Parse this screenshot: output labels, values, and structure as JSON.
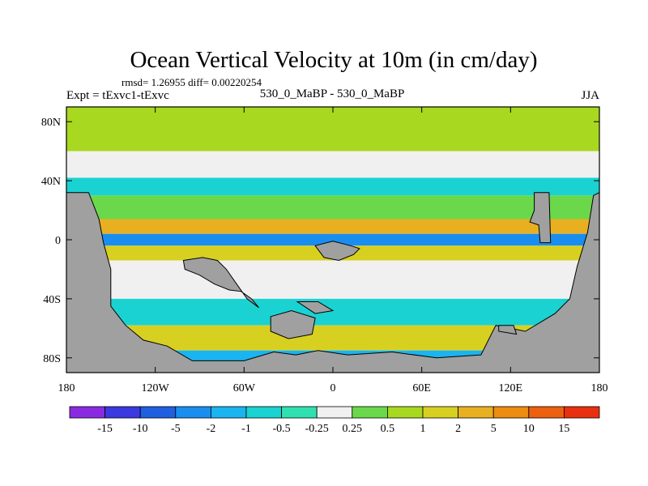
{
  "chart_data": {
    "type": "heatmap",
    "title": "Ocean Vertical Velocity at 10m (in cm/day)",
    "stats_text": "rmsd= 1.26955 diff= 0.00220254",
    "left_label": "Expt = tExvc1-tExvc",
    "center_label": "530_0_MaBP - 530_0_MaBP",
    "right_label": "JJA",
    "x_range": [
      -180,
      180
    ],
    "y_range": [
      -90,
      90
    ],
    "x_ticks": [
      {
        "value": -180,
        "label": "180"
      },
      {
        "value": -120,
        "label": "120W"
      },
      {
        "value": -60,
        "label": "60W"
      },
      {
        "value": 0,
        "label": "0"
      },
      {
        "value": 60,
        "label": "60E"
      },
      {
        "value": 120,
        "label": "120E"
      },
      {
        "value": 180,
        "label": "180"
      }
    ],
    "y_ticks": [
      {
        "value": 80,
        "label": "80N"
      },
      {
        "value": 40,
        "label": "40N"
      },
      {
        "value": 0,
        "label": "0"
      },
      {
        "value": -40,
        "label": "40S"
      },
      {
        "value": -80,
        "label": "80S"
      }
    ],
    "colorbar": {
      "colors": [
        "#8a2be2",
        "#3a3ae0",
        "#1f5fe0",
        "#1a8ef0",
        "#1ab4f0",
        "#1ad2d2",
        "#30e0b0",
        "#f0f0f0",
        "#6ad84a",
        "#a8d820",
        "#d8d020",
        "#e8b020",
        "#ec8c10",
        "#ec6010",
        "#e83010"
      ],
      "labels": [
        "-15",
        "-10",
        "-5",
        "-2",
        "-1",
        "-0.5",
        "-0.25",
        "0.25",
        "0.5",
        "1",
        "2",
        "5",
        "10",
        "15"
      ]
    },
    "land_color": "#a0a0a0",
    "bands": [
      {
        "lat_min": 60,
        "lat_max": 90,
        "value": 0.8
      },
      {
        "lat_min": 42,
        "lat_max": 60,
        "value": -0.2
      },
      {
        "lat_min": 30,
        "lat_max": 42,
        "value": -0.7
      },
      {
        "lat_min": 14,
        "lat_max": 30,
        "value": 0.4
      },
      {
        "lat_min": 4,
        "lat_max": 14,
        "value": 2.5
      },
      {
        "lat_min": -4,
        "lat_max": 4,
        "value": -2.5
      },
      {
        "lat_min": -14,
        "lat_max": -4,
        "value": 1.5
      },
      {
        "lat_min": -40,
        "lat_max": -14,
        "value": 0.1
      },
      {
        "lat_min": -58,
        "lat_max": -40,
        "value": -0.6
      },
      {
        "lat_min": -75,
        "lat_max": -58,
        "value": 1.2
      },
      {
        "lat_min": -90,
        "lat_max": -75,
        "value": -1.5
      }
    ],
    "land": [
      [
        [
          -180,
          32
        ],
        [
          -165,
          32
        ],
        [
          -158,
          14
        ],
        [
          -155,
          -2
        ],
        [
          -150,
          -20
        ],
        [
          -150,
          -45
        ],
        [
          -140,
          -58
        ],
        [
          -128,
          -68
        ],
        [
          -112,
          -72
        ],
        [
          -95,
          -82
        ],
        [
          -60,
          -82
        ],
        [
          -40,
          -76
        ],
        [
          -25,
          -78
        ],
        [
          -10,
          -75
        ],
        [
          10,
          -78
        ],
        [
          40,
          -76
        ],
        [
          70,
          -80
        ],
        [
          100,
          -78
        ],
        [
          110,
          -58
        ],
        [
          130,
          -62
        ],
        [
          150,
          -50
        ],
        [
          160,
          -40
        ],
        [
          165,
          -18
        ],
        [
          172,
          5
        ],
        [
          176,
          30
        ],
        [
          180,
          32
        ],
        [
          180,
          -90
        ],
        [
          -180,
          -90
        ]
      ],
      [
        [
          -101,
          -14
        ],
        [
          -88,
          -12
        ],
        [
          -78,
          -14
        ],
        [
          -72,
          -20
        ],
        [
          -65,
          -30
        ],
        [
          -58,
          -40
        ],
        [
          -50,
          -46
        ],
        [
          -55,
          -40
        ],
        [
          -62,
          -35
        ],
        [
          -70,
          -34
        ],
        [
          -80,
          -30
        ],
        [
          -90,
          -24
        ],
        [
          -100,
          -20
        ]
      ],
      [
        [
          -12,
          -4
        ],
        [
          0,
          -1
        ],
        [
          12,
          -4
        ],
        [
          18,
          -6
        ],
        [
          14,
          -10
        ],
        [
          4,
          -14
        ],
        [
          -6,
          -12
        ]
      ],
      [
        [
          -42,
          -52
        ],
        [
          -28,
          -48
        ],
        [
          -12,
          -53
        ],
        [
          -14,
          -64
        ],
        [
          -30,
          -67
        ],
        [
          -42,
          -62
        ]
      ],
      [
        [
          -24,
          -42
        ],
        [
          -10,
          -42
        ],
        [
          0,
          -48
        ],
        [
          -12,
          -50
        ]
      ],
      [
        [
          136,
          32
        ],
        [
          146,
          32
        ],
        [
          147,
          -2
        ],
        [
          140,
          -2
        ],
        [
          139,
          10
        ],
        [
          133,
          12
        ],
        [
          136,
          20
        ]
      ],
      [
        [
          112,
          -58
        ],
        [
          122,
          -58
        ],
        [
          124,
          -64
        ],
        [
          112,
          -62
        ]
      ]
    ]
  }
}
